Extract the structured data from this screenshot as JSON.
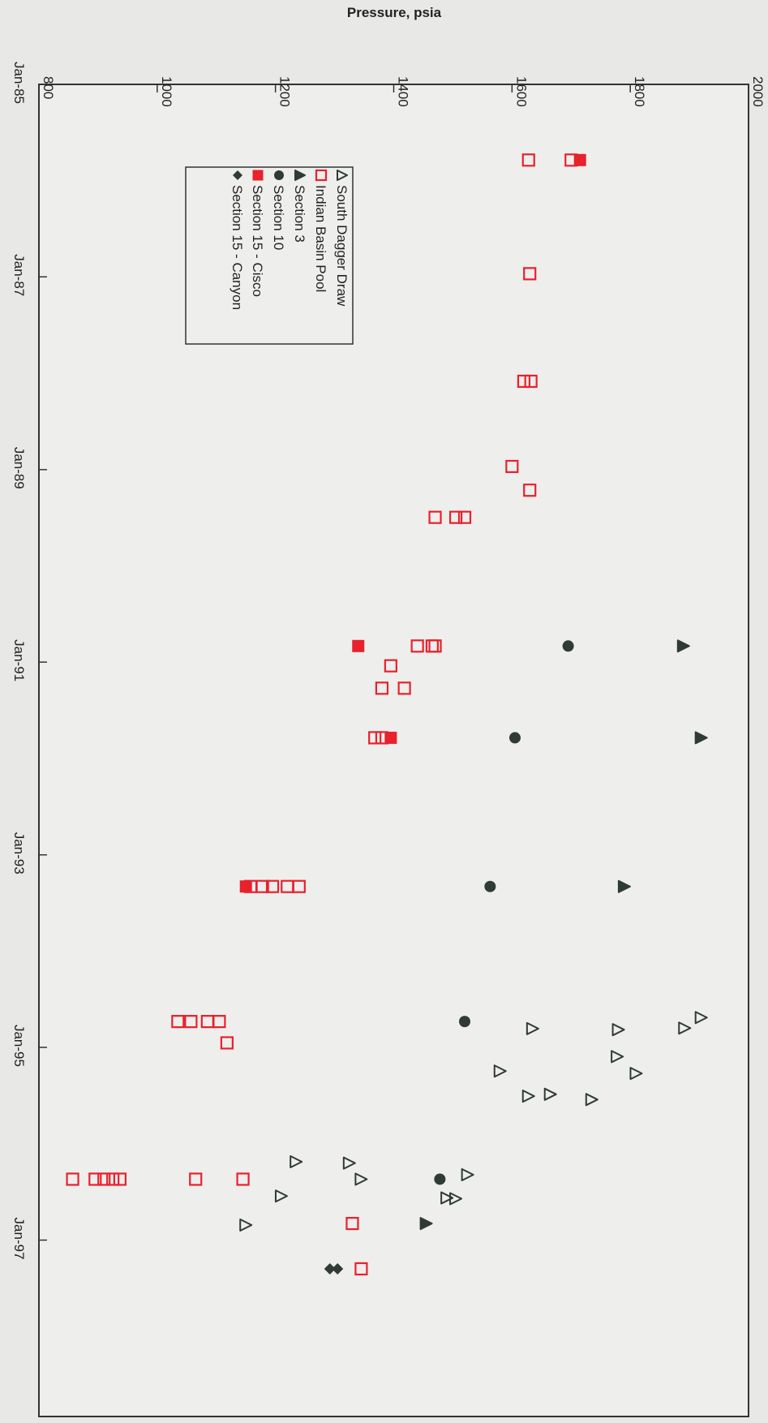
{
  "chart_data": {
    "type": "scatter",
    "title": "",
    "xlabel": "",
    "ylabel": "Pressure, psia",
    "x_axis_kind": "date",
    "y_range": [
      800,
      2000
    ],
    "y_ticks": [
      "800",
      "1000",
      "1200",
      "1400",
      "1600",
      "1800",
      "2000"
    ],
    "x_range": [
      "1985-01-01",
      "1998-11-01"
    ],
    "x_ticks": [
      {
        "label": "Jan-85",
        "date": "1985-01-01"
      },
      {
        "label": "Jan-87",
        "date": "1987-01-01"
      },
      {
        "label": "Jan-89",
        "date": "1989-01-01"
      },
      {
        "label": "Jan-91",
        "date": "1991-01-01"
      },
      {
        "label": "Jan-93",
        "date": "1993-01-01"
      },
      {
        "label": "Jan-95",
        "date": "1995-01-01"
      },
      {
        "label": "Jan-97",
        "date": "1997-01-01"
      }
    ],
    "grid": false,
    "legend_position": "top-left",
    "series": [
      {
        "name": "South Dagger Draw",
        "marker": "triangle-open",
        "color": "#2f3b36",
        "points": [
          {
            "x": "1994-09-10",
            "y": 1920
          },
          {
            "x": "1994-10-20",
            "y": 1892
          },
          {
            "x": "1994-10-22",
            "y": 1635
          },
          {
            "x": "1994-10-26",
            "y": 1780
          },
          {
            "x": "1995-02-05",
            "y": 1778
          },
          {
            "x": "1995-04-01",
            "y": 1580
          },
          {
            "x": "1995-04-10",
            "y": 1810
          },
          {
            "x": "1995-06-28",
            "y": 1665
          },
          {
            "x": "1995-07-05",
            "y": 1628
          },
          {
            "x": "1995-07-18",
            "y": 1735
          },
          {
            "x": "1996-03-10",
            "y": 1235
          },
          {
            "x": "1996-03-15",
            "y": 1325
          },
          {
            "x": "1996-04-28",
            "y": 1525
          },
          {
            "x": "1996-05-15",
            "y": 1345
          },
          {
            "x": "1996-07-18",
            "y": 1210
          },
          {
            "x": "1996-07-25",
            "y": 1490
          },
          {
            "x": "1996-07-28",
            "y": 1505
          },
          {
            "x": "1996-11-05",
            "y": 1150
          }
        ]
      },
      {
        "name": "Indian Basin Pool",
        "marker": "square-open",
        "color": "#e8212d",
        "points": [
          {
            "x": "1985-10-15",
            "y": 1628
          },
          {
            "x": "1985-10-15",
            "y": 1700
          },
          {
            "x": "1986-12-20",
            "y": 1630
          },
          {
            "x": "1988-02-01",
            "y": 1620
          },
          {
            "x": "1988-02-01",
            "y": 1632
          },
          {
            "x": "1988-12-20",
            "y": 1600
          },
          {
            "x": "1989-03-20",
            "y": 1630
          },
          {
            "x": "1989-07-01",
            "y": 1470
          },
          {
            "x": "1989-07-01",
            "y": 1505
          },
          {
            "x": "1989-07-01",
            "y": 1520
          },
          {
            "x": "1990-11-01",
            "y": 1440
          },
          {
            "x": "1990-11-01",
            "y": 1465
          },
          {
            "x": "1990-11-01",
            "y": 1470
          },
          {
            "x": "1991-01-15",
            "y": 1395
          },
          {
            "x": "1991-04-10",
            "y": 1380
          },
          {
            "x": "1991-04-10",
            "y": 1418
          },
          {
            "x": "1991-10-15",
            "y": 1368
          },
          {
            "x": "1991-10-15",
            "y": 1380
          },
          {
            "x": "1993-05-01",
            "y": 1158
          },
          {
            "x": "1993-05-01",
            "y": 1178
          },
          {
            "x": "1993-05-01",
            "y": 1195
          },
          {
            "x": "1993-05-01",
            "y": 1220
          },
          {
            "x": "1993-05-01",
            "y": 1240
          },
          {
            "x": "1994-09-25",
            "y": 1035
          },
          {
            "x": "1994-09-25",
            "y": 1057
          },
          {
            "x": "1994-09-25",
            "y": 1085
          },
          {
            "x": "1994-09-25",
            "y": 1105
          },
          {
            "x": "1994-12-15",
            "y": 1118
          },
          {
            "x": "1996-05-15",
            "y": 857
          },
          {
            "x": "1996-05-15",
            "y": 895
          },
          {
            "x": "1996-05-15",
            "y": 910
          },
          {
            "x": "1996-05-15",
            "y": 925
          },
          {
            "x": "1996-05-15",
            "y": 937
          },
          {
            "x": "1996-05-15",
            "y": 1065
          },
          {
            "x": "1996-05-15",
            "y": 1145
          },
          {
            "x": "1996-10-30",
            "y": 1330
          },
          {
            "x": "1997-04-20",
            "y": 1345
          }
        ]
      },
      {
        "name": "Section 3",
        "marker": "triangle-filled",
        "color": "#2f3b36",
        "points": [
          {
            "x": "1990-11-01",
            "y": 1890
          },
          {
            "x": "1991-10-15",
            "y": 1920
          },
          {
            "x": "1993-05-01",
            "y": 1790
          },
          {
            "x": "1996-10-30",
            "y": 1455
          }
        ]
      },
      {
        "name": "Section 10",
        "marker": "circle-filled",
        "color": "#2f3b36",
        "points": [
          {
            "x": "1990-11-01",
            "y": 1695
          },
          {
            "x": "1991-10-15",
            "y": 1605
          },
          {
            "x": "1993-05-01",
            "y": 1563
          },
          {
            "x": "1994-09-25",
            "y": 1520
          },
          {
            "x": "1996-05-15",
            "y": 1478
          }
        ]
      },
      {
        "name": "Section 15 - Cisco",
        "marker": "square-filled",
        "color": "#e8212d",
        "points": [
          {
            "x": "1985-10-15",
            "y": 1715
          },
          {
            "x": "1990-11-01",
            "y": 1340
          },
          {
            "x": "1991-10-15",
            "y": 1395
          },
          {
            "x": "1993-05-01",
            "y": 1150
          }
        ]
      },
      {
        "name": "Section 15 - Canyon",
        "marker": "diamond-filled",
        "color": "#2f3b36",
        "points": [
          {
            "x": "1997-04-20",
            "y": 1292
          },
          {
            "x": "1997-04-20",
            "y": 1305
          }
        ]
      }
    ]
  }
}
